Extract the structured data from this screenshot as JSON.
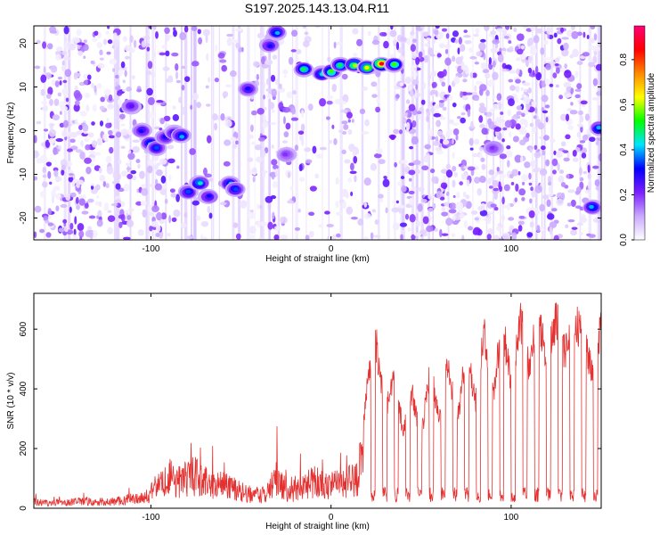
{
  "title": "S197.2025.143.13.04.R11",
  "chart_data": [
    {
      "type": "heatmap",
      "xlabel": "Height of straight line (km)",
      "ylabel": "Frequency (Hz)",
      "xlim": [
        -165,
        150
      ],
      "ylim": [
        -25,
        24
      ],
      "xticks": [
        -100,
        0,
        100
      ],
      "yticks": [
        -20,
        -10,
        0,
        10,
        20
      ],
      "colorbar": {
        "label": "Normalized spectral amplitude",
        "range": [
          0.0,
          0.95
        ],
        "ticks": [
          0.0,
          0.2,
          0.4,
          0.6,
          0.8
        ],
        "tick_labels": [
          "0.0",
          "0.2",
          "0.4",
          "0.6",
          "0.8"
        ],
        "colors": [
          "#ffffff",
          "#c9a9ff",
          "#7b1fff",
          "#0000ff",
          "#00e5ff",
          "#00ff00",
          "#ffff00",
          "#ff8800",
          "#ff0000",
          "#ff0077"
        ]
      },
      "features": [
        {
          "x": -111,
          "y": 5.5,
          "amp": 0.25
        },
        {
          "x": -105,
          "y": 0.0,
          "amp": 0.3
        },
        {
          "x": -100,
          "y": -3.0,
          "amp": 0.4
        },
        {
          "x": -97,
          "y": -4.0,
          "amp": 0.35
        },
        {
          "x": -92,
          "y": -1.5,
          "amp": 0.3
        },
        {
          "x": -87,
          "y": -0.5,
          "amp": 0.3
        },
        {
          "x": -83,
          "y": -1.2,
          "amp": 0.4
        },
        {
          "x": -79,
          "y": -14.0,
          "amp": 0.35
        },
        {
          "x": -73,
          "y": -12.0,
          "amp": 0.45
        },
        {
          "x": -68,
          "y": -15.0,
          "amp": 0.3
        },
        {
          "x": -56,
          "y": -12.0,
          "amp": 0.4
        },
        {
          "x": -53,
          "y": -13.5,
          "amp": 0.35
        },
        {
          "x": -46,
          "y": 9.5,
          "amp": 0.3
        },
        {
          "x": -34,
          "y": 19.5,
          "amp": 0.3
        },
        {
          "x": -30,
          "y": 22.5,
          "amp": 0.4
        },
        {
          "x": -25,
          "y": -5.5,
          "amp": 0.2
        },
        {
          "x": -15,
          "y": 14.0,
          "amp": 0.5
        },
        {
          "x": -5,
          "y": 13.0,
          "amp": 0.45
        },
        {
          "x": 0,
          "y": 13.5,
          "amp": 0.55
        },
        {
          "x": 5,
          "y": 15.0,
          "amp": 0.5
        },
        {
          "x": 13,
          "y": 15.0,
          "amp": 0.6
        },
        {
          "x": 20,
          "y": 14.5,
          "amp": 0.65
        },
        {
          "x": 28,
          "y": 15.2,
          "amp": 0.85
        },
        {
          "x": 35,
          "y": 15.0,
          "amp": 0.55
        },
        {
          "x": 90,
          "y": -4.0,
          "amp": 0.2
        },
        {
          "x": 145,
          "y": -17.5,
          "amp": 0.4
        },
        {
          "x": 149,
          "y": 0.5,
          "amp": 0.4
        }
      ]
    },
    {
      "type": "line",
      "xlabel": "Height of straight line (km)",
      "ylabel": "SNR (10 * v/v)",
      "xlim": [
        -165,
        150
      ],
      "ylim": [
        0,
        720
      ],
      "xticks": [
        -100,
        0,
        100
      ],
      "yticks": [
        0,
        200,
        400,
        600
      ],
      "series": [
        {
          "color": "#e53030",
          "x": [
            -165,
            -155,
            -145,
            -135,
            -125,
            -115,
            -105,
            -100,
            -95,
            -90,
            -85,
            -80,
            -75,
            -70,
            -65,
            -60,
            -55,
            -50,
            -45,
            -40,
            -35,
            -30,
            -25,
            -22,
            -20,
            -15,
            -10,
            -5,
            0,
            5,
            10,
            15,
            20,
            25,
            30,
            35,
            40,
            45,
            50,
            55,
            60,
            65,
            70,
            75,
            80,
            85,
            90,
            95,
            100,
            105,
            110,
            115,
            120,
            125,
            130,
            135,
            140,
            145,
            150
          ],
          "y": [
            30,
            25,
            30,
            35,
            30,
            40,
            55,
            80,
            120,
            160,
            130,
            150,
            160,
            140,
            120,
            110,
            100,
            80,
            70,
            60,
            80,
            160,
            90,
            70,
            100,
            110,
            130,
            120,
            110,
            120,
            130,
            150,
            430,
            600,
            340,
            480,
            280,
            420,
            250,
            500,
            320,
            520,
            300,
            580,
            380,
            640,
            400,
            670,
            450,
            690,
            500,
            700,
            520,
            680,
            560,
            690,
            600,
            500,
            640
          ]
        }
      ]
    }
  ]
}
